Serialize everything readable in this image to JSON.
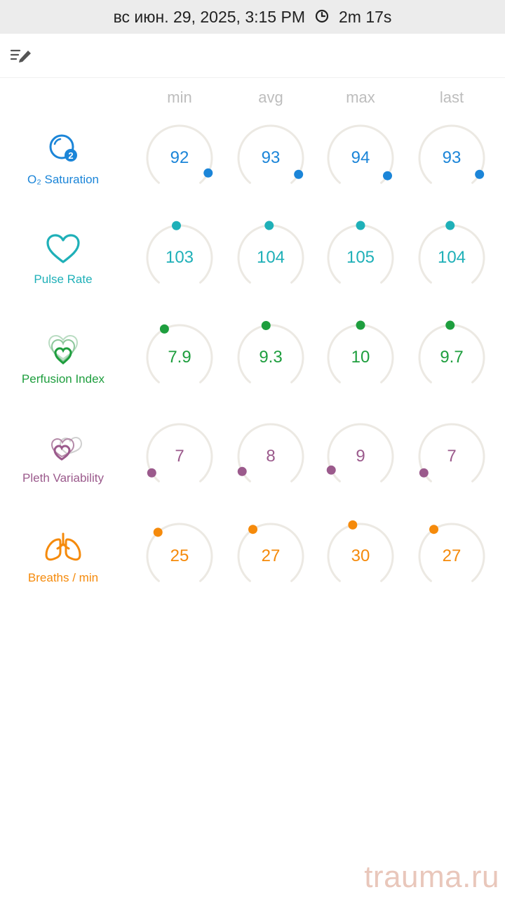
{
  "header": {
    "date": "вс июн. 29, 2025, 3:15 PM",
    "duration": "2m 17s"
  },
  "columns": [
    "min",
    "avg",
    "max",
    "last"
  ],
  "colors": {
    "o2": "#1b85d8",
    "pulse": "#1fb0b8",
    "perfusion": "#1e9e3e",
    "pleth": "#9b5a8c",
    "breaths": "#f58a0b",
    "ring": "#ece9e3"
  },
  "metrics": [
    {
      "key": "o2",
      "label": "O₂ Saturation",
      "icon": "o2-bubble-icon",
      "values": [
        "92",
        "93",
        "94",
        "93"
      ],
      "levels": [
        0.92,
        0.93,
        0.94,
        0.93
      ]
    },
    {
      "key": "pulse",
      "label": "Pulse Rate",
      "icon": "heart-icon",
      "values": [
        "103",
        "104",
        "105",
        "104"
      ],
      "levels": [
        0.48,
        0.49,
        0.5,
        0.49
      ]
    },
    {
      "key": "perfusion",
      "label": "Perfusion Index",
      "icon": "perfusion-hearts-icon",
      "values": [
        "7.9",
        "9.3",
        "10",
        "9.7"
      ],
      "levels": [
        0.4,
        0.47,
        0.5,
        0.49
      ]
    },
    {
      "key": "pleth",
      "label": "Pleth Variability",
      "icon": "pleth-hearts-icon",
      "values": [
        "7",
        "8",
        "9",
        "7"
      ],
      "levels": [
        0.07,
        0.08,
        0.09,
        0.07
      ]
    },
    {
      "key": "breaths",
      "label": "Breaths / min",
      "icon": "lungs-icon",
      "values": [
        "25",
        "27",
        "30",
        "27"
      ],
      "levels": [
        0.35,
        0.38,
        0.45,
        0.38
      ]
    }
  ],
  "watermark": "trauma.ru"
}
